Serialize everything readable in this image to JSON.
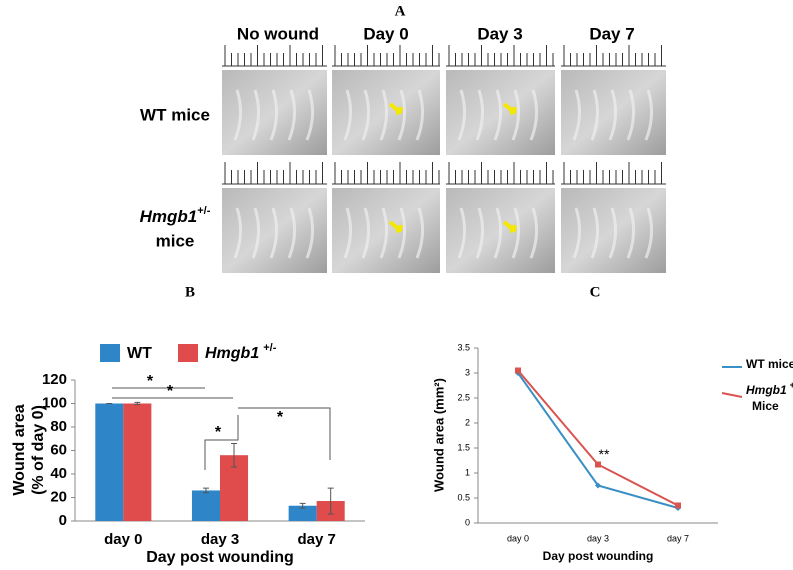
{
  "panel_labels": [
    "A",
    "B",
    "C"
  ],
  "panel_a": {
    "columns": [
      "No wound",
      "Day 0",
      "Day 3",
      "Day 7"
    ],
    "rows": [
      {
        "name": "WT mice"
      },
      {
        "name": "Hmgb1",
        "superscript": "+/-",
        "suffix": "mice"
      }
    ]
  },
  "chart_data": [
    {
      "type": "bar",
      "ylabel": [
        "Wound area",
        "(% of day 0)"
      ],
      "xlabel": "Day post wounding",
      "categories": [
        "day 0",
        "day 3",
        "day 7"
      ],
      "series": [
        {
          "name": "WT",
          "color": "#2e86c8",
          "values": [
            100,
            26,
            13
          ],
          "errors": [
            0,
            2,
            2
          ]
        },
        {
          "name": "Hmgb1",
          "superscript": "+/-",
          "color": "#e04b4b",
          "values": [
            100,
            56,
            17
          ],
          "errors": [
            1,
            10,
            11
          ]
        }
      ],
      "ylim": [
        0,
        120
      ],
      "yticks": [
        0,
        20,
        40,
        60,
        80,
        100,
        120
      ],
      "annotations": [
        "*",
        "*",
        "*",
        "*"
      ]
    },
    {
      "type": "line",
      "ylabel": "Wound area (mm²)",
      "xlabel": "Day post wounding",
      "categories": [
        "day 0",
        "day 3",
        "day 7"
      ],
      "series": [
        {
          "name": "WT mice",
          "color": "#3a8fc4",
          "values": [
            3.0,
            0.75,
            0.3
          ]
        },
        {
          "name": "Hmgb1",
          "superscript": "+/-",
          "suffix": "Mice",
          "color": "#d9534f",
          "values": [
            3.05,
            1.17,
            0.35
          ]
        }
      ],
      "ylim": [
        0,
        3.5
      ],
      "yticks": [
        0,
        0.5,
        1,
        1.5,
        2,
        2.5,
        3,
        3.5
      ],
      "annotations": [
        "**"
      ]
    }
  ]
}
